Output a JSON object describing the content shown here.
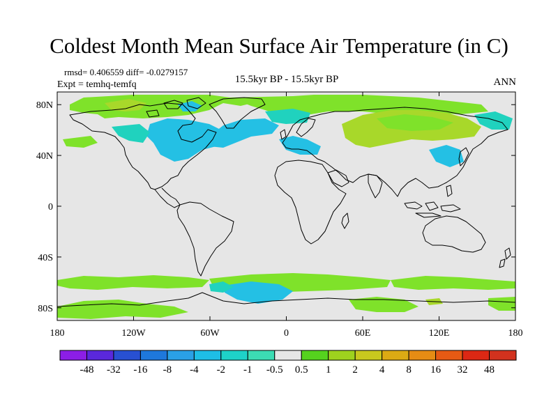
{
  "title": "Coldest Month Mean Surface Air Temperature (in C)",
  "stats": "rmsd= 0.406559 diff= -0.0279157",
  "experiment": "Expt = temhq-temfq",
  "period": "15.5kyr BP - 15.5kyr BP",
  "season": "ANN",
  "axes": {
    "lat_ticks": [
      {
        "value": 80,
        "label": "80N"
      },
      {
        "value": 40,
        "label": "40N"
      },
      {
        "value": 0,
        "label": "0"
      },
      {
        "value": -40,
        "label": "40S"
      },
      {
        "value": -80,
        "label": "80S"
      }
    ],
    "lon_ticks": [
      {
        "value": -180,
        "label": "180"
      },
      {
        "value": -120,
        "label": "120W"
      },
      {
        "value": -60,
        "label": "60W"
      },
      {
        "value": 0,
        "label": "0"
      },
      {
        "value": 60,
        "label": "60E"
      },
      {
        "value": 120,
        "label": "120E"
      },
      {
        "value": 180,
        "label": "180"
      }
    ]
  },
  "colorbar": {
    "labels": [
      "-48",
      "-32",
      "-16",
      "-8",
      "-4",
      "-2",
      "-1",
      "-0.5",
      "0.5",
      "1",
      "2",
      "4",
      "8",
      "16",
      "32",
      "48"
    ],
    "colors": [
      "#8c1ee6",
      "#5a28dc",
      "#2850d2",
      "#1e78dc",
      "#2aa0e6",
      "#1ebee6",
      "#1ed2c8",
      "#3cdcb4",
      "#e6e6e6",
      "#55d21e",
      "#9ed21e",
      "#c8c81e",
      "#dcaa14",
      "#e68c14",
      "#e65a14",
      "#dc2814"
    ]
  },
  "colors": {
    "no_change": "#e6e6e6",
    "warm_small": "#7fe22a",
    "warm_medium": "#a8d82a",
    "cool_small": "#20d2be",
    "cool_medium": "#24c0e4"
  }
}
